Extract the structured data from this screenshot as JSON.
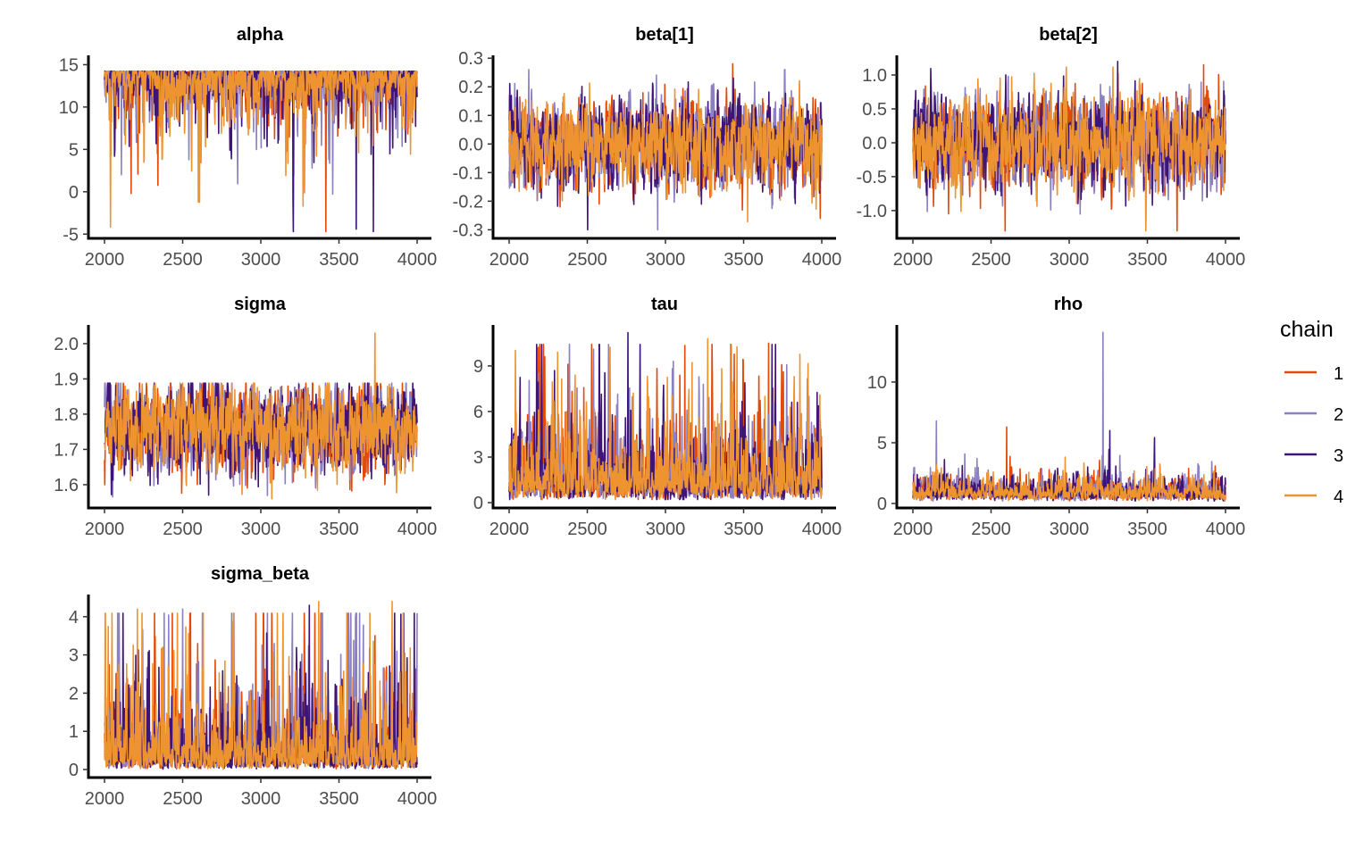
{
  "chart_data": {
    "type": "line",
    "subtype": "mcmc-trace-facets",
    "legend": {
      "title": "chain",
      "position": "right",
      "entries": [
        "1",
        "2",
        "3",
        "4"
      ]
    },
    "colors": {
      "1": "#e04a0a",
      "2": "#8c7fc2",
      "3": "#3f1477",
      "4": "#ed9431"
    },
    "xlim": [
      2000,
      4000
    ],
    "x_ticks": [
      "2000",
      "2500",
      "3000",
      "3500",
      "4000"
    ],
    "panels": [
      {
        "title": "alpha",
        "ylim": [
          -5.5,
          16.1
        ],
        "y_ticks": [
          "-5",
          "0",
          "5",
          "10",
          "15"
        ],
        "y_tick_values": [
          -5,
          0,
          5,
          10,
          15
        ],
        "shape": "left-skewed",
        "approx_center": 12.2,
        "approx_max": 15.3,
        "approx_min": -4.7,
        "notable_points": [
          {
            "chain": "3",
            "iteration": 3610,
            "value": -4.4
          },
          {
            "chain": "3",
            "iteration": 3720,
            "value": -4.7
          },
          {
            "chain": "4",
            "iteration": 2600,
            "value": -1.2
          },
          {
            "chain": "4",
            "iteration": 3270,
            "value": -1.7
          },
          {
            "chain": "1",
            "iteration": 2170,
            "value": -0.2
          }
        ]
      },
      {
        "title": "beta[1]",
        "ylim": [
          -0.33,
          0.31
        ],
        "y_ticks": [
          "-0.3",
          "-0.2",
          "-0.1",
          "0.0",
          "0.1",
          "0.2",
          "0.3"
        ],
        "y_tick_values": [
          -0.3,
          -0.2,
          -0.1,
          0,
          0.1,
          0.2,
          0.3
        ],
        "shape": "normal",
        "approx_center": 0.0,
        "approx_max": 0.28,
        "approx_min": -0.3,
        "notable_points": [
          {
            "chain": "1",
            "iteration": 3430,
            "value": 0.28
          },
          {
            "chain": "2",
            "iteration": 2950,
            "value": -0.3
          },
          {
            "chain": "1",
            "iteration": 3990,
            "value": -0.26
          }
        ]
      },
      {
        "title": "beta[2]",
        "ylim": [
          -1.41,
          1.29
        ],
        "y_ticks": [
          "-1.0",
          "-0.5",
          "0.0",
          "0.5",
          "1.0"
        ],
        "y_tick_values": [
          -1,
          -0.5,
          0,
          0.5,
          1
        ],
        "shape": "normal",
        "approx_center": 0.0,
        "approx_max": 1.2,
        "approx_min": -1.3,
        "notable_points": [
          {
            "chain": "3",
            "iteration": 3310,
            "value": 1.2
          },
          {
            "chain": "1",
            "iteration": 3860,
            "value": 1.15
          },
          {
            "chain": "1",
            "iteration": 2590,
            "value": -1.3
          },
          {
            "chain": "1",
            "iteration": 3690,
            "value": -1.3
          },
          {
            "chain": "2",
            "iteration": 3070,
            "value": -1.05
          }
        ]
      },
      {
        "title": "sigma",
        "ylim": [
          1.534,
          2.053
        ],
        "y_ticks": [
          "1.6",
          "1.7",
          "1.8",
          "1.9",
          "2.0"
        ],
        "y_tick_values": [
          1.6,
          1.7,
          1.8,
          1.9,
          2.0
        ],
        "shape": "normal",
        "approx_center": 1.76,
        "approx_max": 2.03,
        "approx_min": 1.56,
        "notable_points": [
          {
            "chain": "4",
            "iteration": 3730,
            "value": 2.03
          },
          {
            "chain": "4",
            "iteration": 3070,
            "value": 1.56
          }
        ]
      },
      {
        "title": "tau",
        "ylim": [
          -0.35,
          11.7
        ],
        "y_ticks": [
          "0",
          "3",
          "6",
          "9"
        ],
        "y_tick_values": [
          0,
          3,
          6,
          9
        ],
        "shape": "right-skewed",
        "approx_center": 1.5,
        "approx_max": 11.2,
        "approx_min": 0.2,
        "notable_points": [
          {
            "chain": "3",
            "iteration": 2760,
            "value": 11.2
          },
          {
            "chain": "4",
            "iteration": 3270,
            "value": 10.8
          },
          {
            "chain": "1",
            "iteration": 3660,
            "value": 10.5
          },
          {
            "chain": "4",
            "iteration": 2310,
            "value": 9.9
          }
        ]
      },
      {
        "title": "rho",
        "ylim": [
          -0.37,
          14.7
        ],
        "y_ticks": [
          "0",
          "5",
          "10"
        ],
        "y_tick_values": [
          0,
          5,
          10
        ],
        "shape": "right-skewed",
        "approx_center": 0.9,
        "approx_max": 14.1,
        "approx_min": 0.2,
        "notable_points": [
          {
            "chain": "2",
            "iteration": 3215,
            "value": 14.1
          },
          {
            "chain": "2",
            "iteration": 2150,
            "value": 6.8
          },
          {
            "chain": "1",
            "iteration": 2600,
            "value": 6.3
          },
          {
            "chain": "3",
            "iteration": 3260,
            "value": 6.0
          }
        ]
      },
      {
        "title": "sigma_beta",
        "ylim": [
          -0.21,
          4.58
        ],
        "y_ticks": [
          "0",
          "1",
          "2",
          "3",
          "4"
        ],
        "y_tick_values": [
          0,
          1,
          2,
          3,
          4
        ],
        "shape": "right-skewed",
        "approx_center": 0.4,
        "approx_max": 4.4,
        "approx_min": 0.0,
        "notable_points": [
          {
            "chain": "4",
            "iteration": 3370,
            "value": 4.4
          },
          {
            "chain": "4",
            "iteration": 3840,
            "value": 4.4
          },
          {
            "chain": "3",
            "iteration": 3310,
            "value": 4.3
          },
          {
            "chain": "4",
            "iteration": 2210,
            "value": 4.2
          },
          {
            "chain": "2",
            "iteration": 2500,
            "value": 4.2
          }
        ]
      }
    ]
  }
}
